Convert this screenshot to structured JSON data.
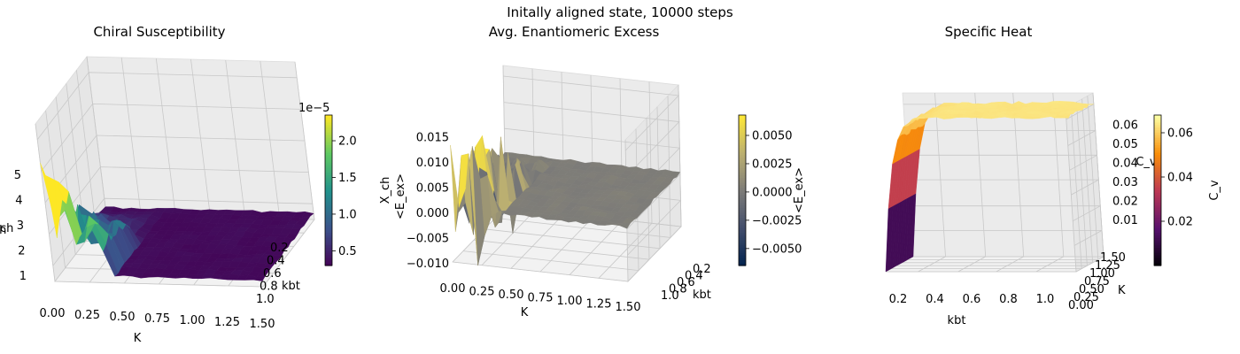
{
  "suptitle": "Initally aligned state, 10000 steps",
  "chart_data": [
    {
      "type": "surface3d",
      "title": "Chiral Susceptibility",
      "xlabel": "K",
      "ylabel": "kbt",
      "zlabel": "X_ch",
      "x_ticks": [
        "0.00",
        "0.25",
        "0.50",
        "0.75",
        "1.00",
        "1.25",
        "1.50"
      ],
      "y_ticks": [
        "0.2",
        "0.4",
        "0.6",
        "0.8",
        "1.0"
      ],
      "z_ticks": [
        "1",
        "2",
        "3",
        "4",
        "5"
      ],
      "z_offset": "1e−5",
      "xlim": [
        0,
        1.5
      ],
      "ylim": [
        0.1,
        1.0
      ],
      "zlim": [
        0.5,
        5.5
      ],
      "colormap": "viridis",
      "colorbar": {
        "label": "X_ch",
        "offset": "1e−5",
        "ticks": [
          "0.5",
          "1.0",
          "1.5",
          "2.0"
        ],
        "range": [
          0.3,
          2.35
        ]
      },
      "description": "surface is flat near 0.3e-5 for K > 0.4, with large spikes up to about 5.5e-5 for K < 0.4 at low kbt"
    },
    {
      "type": "surface3d",
      "title": "Avg. Enantiomeric Excess",
      "xlabel": "K",
      "ylabel": "kbt",
      "zlabel": "<E_ex>",
      "x_ticks": [
        "0.00",
        "0.25",
        "0.50",
        "0.75",
        "1.00",
        "1.25",
        "1.50"
      ],
      "y_ticks": [
        "0.2",
        "0.4",
        "0.6",
        "0.8",
        "1.0"
      ],
      "z_ticks": [
        "−0.010",
        "−0.005",
        "0.000",
        "0.005",
        "0.010",
        "0.015"
      ],
      "xlim": [
        0,
        1.5
      ],
      "ylim": [
        0.1,
        1.0
      ],
      "zlim": [
        -0.01,
        0.017
      ],
      "colormap": "cividis",
      "colorbar": {
        "label": "<E_ex>",
        "ticks": [
          "0.0050",
          "0.0025",
          "0.0000",
          "−0.0025",
          "−0.0050"
        ],
        "range": [
          -0.0065,
          0.0068
        ]
      },
      "description": "surface fluctuates around 0 with spikes between -0.010 and 0.016 for K < 0.4"
    },
    {
      "type": "surface3d",
      "title": "Specific Heat",
      "xlabel": "kbt",
      "ylabel": "K",
      "zlabel": "C_v",
      "x_ticks": [
        "0.2",
        "0.4",
        "0.6",
        "0.8",
        "1.0"
      ],
      "y_ticks": [
        "0.00",
        "0.25",
        "0.50",
        "0.75",
        "1.00",
        "1.25",
        "1.50"
      ],
      "z_ticks": [
        "0.01",
        "0.02",
        "0.03",
        "0.04",
        "0.05",
        "0.06"
      ],
      "xlim": [
        0.05,
        1.05
      ],
      "ylim": [
        0,
        1.5
      ],
      "zlim": [
        0,
        0.065
      ],
      "colormap": "inferno",
      "colorbar": {
        "label": "C_v",
        "ticks": [
          "0.02",
          "0.04",
          "0.06"
        ],
        "range": [
          0.0,
          0.068
        ]
      },
      "description": "C_v rises steeply from 0 at low kbt to a plateau near 0.065, nearly constant along K"
    }
  ]
}
